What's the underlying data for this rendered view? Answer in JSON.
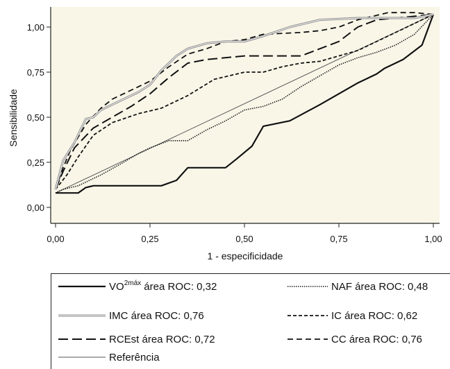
{
  "chart_data": {
    "type": "line",
    "xlabel": "1 - especificidade",
    "ylabel": "Sensibilidade",
    "xlim": [
      0,
      1
    ],
    "ylim": [
      0,
      1.08
    ],
    "xticks": [
      "0,00",
      "0,25",
      "0,50",
      "0,75",
      "1,00"
    ],
    "yticks": [
      "0,00",
      "0,25",
      "0,50",
      "0,75",
      "1,00"
    ],
    "legend_position": "bottom",
    "colors": {
      "plot_background": "#f9f6e8",
      "line_dark": "#111111",
      "line_gray": "#888888"
    },
    "series": [
      {
        "label_main": "VO",
        "label_sup": "2máx",
        "label_rest": " área ROC: 0,32",
        "style": "solid-thick",
        "points": [
          [
            0.0,
            0.08
          ],
          [
            0.06,
            0.08
          ],
          [
            0.08,
            0.11
          ],
          [
            0.1,
            0.12
          ],
          [
            0.28,
            0.12
          ],
          [
            0.32,
            0.15
          ],
          [
            0.35,
            0.22
          ],
          [
            0.45,
            0.22
          ],
          [
            0.48,
            0.27
          ],
          [
            0.52,
            0.34
          ],
          [
            0.55,
            0.45
          ],
          [
            0.62,
            0.48
          ],
          [
            0.7,
            0.57
          ],
          [
            0.8,
            0.69
          ],
          [
            0.85,
            0.74
          ],
          [
            0.87,
            0.77
          ],
          [
            0.92,
            0.82
          ],
          [
            0.97,
            0.9
          ],
          [
            1.0,
            1.07
          ]
        ]
      },
      {
        "label": "NAF área ROC: 0,48",
        "style": "dotted",
        "points": [
          [
            0.0,
            0.08
          ],
          [
            0.02,
            0.1
          ],
          [
            0.06,
            0.12
          ],
          [
            0.12,
            0.18
          ],
          [
            0.18,
            0.25
          ],
          [
            0.22,
            0.3
          ],
          [
            0.25,
            0.33
          ],
          [
            0.3,
            0.37
          ],
          [
            0.35,
            0.37
          ],
          [
            0.4,
            0.43
          ],
          [
            0.45,
            0.48
          ],
          [
            0.5,
            0.54
          ],
          [
            0.55,
            0.56
          ],
          [
            0.6,
            0.6
          ],
          [
            0.65,
            0.67
          ],
          [
            0.7,
            0.73
          ],
          [
            0.75,
            0.79
          ],
          [
            0.8,
            0.83
          ],
          [
            0.85,
            0.86
          ],
          [
            0.9,
            0.9
          ],
          [
            0.95,
            0.96
          ],
          [
            1.0,
            1.07
          ]
        ]
      },
      {
        "label": "IMC área ROC: 0,76",
        "style": "double-gray",
        "points": [
          [
            0.0,
            0.1
          ],
          [
            0.02,
            0.26
          ],
          [
            0.05,
            0.36
          ],
          [
            0.08,
            0.49
          ],
          [
            0.1,
            0.5
          ],
          [
            0.12,
            0.54
          ],
          [
            0.15,
            0.57
          ],
          [
            0.18,
            0.6
          ],
          [
            0.22,
            0.64
          ],
          [
            0.25,
            0.68
          ],
          [
            0.28,
            0.76
          ],
          [
            0.32,
            0.84
          ],
          [
            0.35,
            0.88
          ],
          [
            0.4,
            0.91
          ],
          [
            0.45,
            0.92
          ],
          [
            0.5,
            0.92
          ],
          [
            0.55,
            0.95
          ],
          [
            0.62,
            1.0
          ],
          [
            0.7,
            1.04
          ],
          [
            0.8,
            1.05
          ],
          [
            0.88,
            1.05
          ],
          [
            0.95,
            1.05
          ],
          [
            1.0,
            1.07
          ]
        ]
      },
      {
        "label": "IC área ROC: 0,62",
        "style": "short-dash",
        "points": [
          [
            0.0,
            0.1
          ],
          [
            0.03,
            0.18
          ],
          [
            0.06,
            0.28
          ],
          [
            0.1,
            0.4
          ],
          [
            0.15,
            0.47
          ],
          [
            0.22,
            0.52
          ],
          [
            0.28,
            0.55
          ],
          [
            0.35,
            0.62
          ],
          [
            0.42,
            0.71
          ],
          [
            0.5,
            0.75
          ],
          [
            0.55,
            0.75
          ],
          [
            0.6,
            0.78
          ],
          [
            0.65,
            0.8
          ],
          [
            0.7,
            0.81
          ],
          [
            0.75,
            0.84
          ],
          [
            0.8,
            0.87
          ],
          [
            0.85,
            0.92
          ],
          [
            0.9,
            0.97
          ],
          [
            1.0,
            1.07
          ]
        ]
      },
      {
        "label": "RCEst área ROC: 0,72",
        "style": "long-dash",
        "points": [
          [
            0.0,
            0.1
          ],
          [
            0.02,
            0.2
          ],
          [
            0.05,
            0.33
          ],
          [
            0.1,
            0.44
          ],
          [
            0.15,
            0.5
          ],
          [
            0.2,
            0.56
          ],
          [
            0.25,
            0.63
          ],
          [
            0.3,
            0.72
          ],
          [
            0.35,
            0.8
          ],
          [
            0.4,
            0.82
          ],
          [
            0.5,
            0.84
          ],
          [
            0.6,
            0.84
          ],
          [
            0.65,
            0.84
          ],
          [
            0.7,
            0.88
          ],
          [
            0.75,
            0.92
          ],
          [
            0.8,
            1.0
          ],
          [
            0.85,
            1.04
          ],
          [
            0.9,
            1.05
          ],
          [
            1.0,
            1.07
          ]
        ]
      },
      {
        "label": "CC área ROC: 0,76",
        "style": "medium-dash",
        "points": [
          [
            0.0,
            0.1
          ],
          [
            0.02,
            0.22
          ],
          [
            0.04,
            0.32
          ],
          [
            0.08,
            0.46
          ],
          [
            0.12,
            0.55
          ],
          [
            0.15,
            0.6
          ],
          [
            0.2,
            0.65
          ],
          [
            0.25,
            0.7
          ],
          [
            0.3,
            0.78
          ],
          [
            0.35,
            0.85
          ],
          [
            0.4,
            0.88
          ],
          [
            0.45,
            0.92
          ],
          [
            0.5,
            0.93
          ],
          [
            0.55,
            0.96
          ],
          [
            0.65,
            0.97
          ],
          [
            0.7,
            0.98
          ],
          [
            0.75,
            1.0
          ],
          [
            0.8,
            1.04
          ],
          [
            0.88,
            1.08
          ],
          [
            0.95,
            1.08
          ],
          [
            1.0,
            1.07
          ]
        ]
      },
      {
        "label": "Referência",
        "style": "reference",
        "points": [
          [
            0.0,
            0.08
          ],
          [
            1.0,
            1.07
          ]
        ]
      }
    ]
  }
}
